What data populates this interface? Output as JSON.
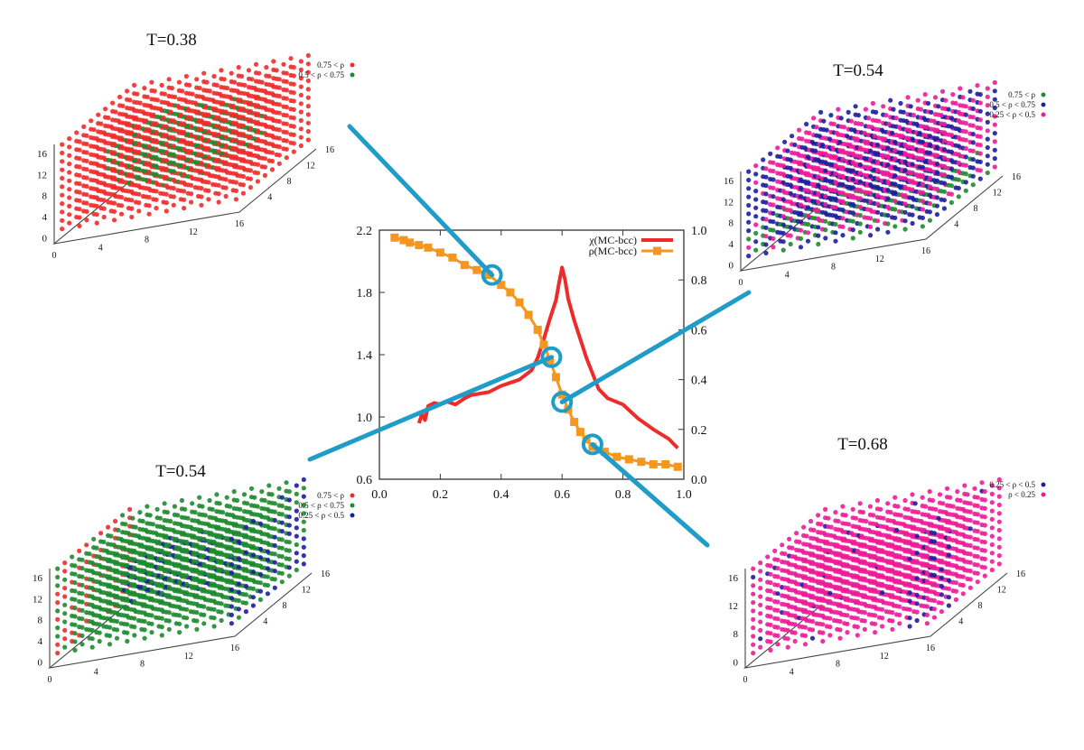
{
  "colors": {
    "red": "#ee2b2b",
    "green": "#1e8a2e",
    "blue": "#1c1f9c",
    "pink": "#ee1b98",
    "orange": "#f5961e",
    "connector": "#1f9cc8",
    "axis": "#333333"
  },
  "chart_data": {
    "type": "line",
    "title": "",
    "xlabel": "",
    "ylabel": "",
    "xlim": [
      0.0,
      1.0
    ],
    "ylim_left": [
      0.6,
      2.2
    ],
    "ylim_right": [
      0.0,
      1.0
    ],
    "xticks": [
      "0.0",
      "0.2",
      "0.4",
      "0.6",
      "0.8",
      "1.0"
    ],
    "yticks_left": [
      "0.6",
      "1.0",
      "1.4",
      "1.8",
      "2.2"
    ],
    "yticks_right": [
      "0.0",
      "0.2",
      "0.4",
      "0.6",
      "0.8",
      "1.0"
    ],
    "legend_position": "top-right",
    "series": [
      {
        "name": "χ(MC-bcc)",
        "axis": "left",
        "color": "red",
        "x": [
          0.13,
          0.14,
          0.15,
          0.16,
          0.18,
          0.2,
          0.22,
          0.25,
          0.28,
          0.3,
          0.33,
          0.36,
          0.4,
          0.43,
          0.46,
          0.48,
          0.5,
          0.52,
          0.54,
          0.56,
          0.58,
          0.59,
          0.6,
          0.61,
          0.62,
          0.64,
          0.66,
          0.68,
          0.7,
          0.72,
          0.75,
          0.8,
          0.85,
          0.9,
          0.95,
          0.98
        ],
        "y": [
          0.96,
          1.02,
          0.98,
          1.07,
          1.09,
          1.08,
          1.1,
          1.08,
          1.12,
          1.14,
          1.15,
          1.16,
          1.2,
          1.22,
          1.24,
          1.27,
          1.3,
          1.38,
          1.5,
          1.63,
          1.75,
          1.86,
          1.96,
          1.88,
          1.76,
          1.62,
          1.5,
          1.38,
          1.28,
          1.18,
          1.12,
          1.08,
          0.99,
          0.92,
          0.86,
          0.8
        ]
      },
      {
        "name": "ρ(MC-bcc)",
        "axis": "right",
        "color": "orange",
        "x": [
          0.05,
          0.08,
          0.1,
          0.13,
          0.16,
          0.2,
          0.24,
          0.28,
          0.32,
          0.36,
          0.4,
          0.43,
          0.46,
          0.49,
          0.52,
          0.54,
          0.56,
          0.58,
          0.6,
          0.62,
          0.64,
          0.66,
          0.68,
          0.7,
          0.74,
          0.78,
          0.82,
          0.86,
          0.9,
          0.94,
          0.98
        ],
        "y": [
          0.97,
          0.96,
          0.95,
          0.94,
          0.93,
          0.91,
          0.89,
          0.86,
          0.84,
          0.82,
          0.78,
          0.75,
          0.71,
          0.66,
          0.6,
          0.54,
          0.48,
          0.41,
          0.34,
          0.28,
          0.23,
          0.19,
          0.16,
          0.13,
          0.11,
          0.09,
          0.08,
          0.07,
          0.06,
          0.06,
          0.05
        ]
      }
    ]
  },
  "highlights": [
    {
      "x": 0.37,
      "y_right": 0.82
    },
    {
      "x": 0.565,
      "y_right": 0.49
    },
    {
      "x": 0.6,
      "y_right": 0.31
    },
    {
      "x": 0.7,
      "y_right": 0.14
    }
  ],
  "insets": [
    {
      "id": "top-left",
      "title": "T=0.38",
      "z_ticks": [
        "0",
        "4",
        "8",
        "12",
        "16"
      ],
      "x_ticks": [
        "0",
        "4",
        "8",
        "12",
        "16"
      ],
      "y_ticks": [
        "4",
        "8",
        "12",
        "16"
      ],
      "legend": [
        {
          "label": "0.75 < ρ",
          "color": "red"
        },
        {
          "label": "0.5 < ρ < 0.75",
          "color": "green"
        }
      ],
      "base_color": "red",
      "blob_color": "green",
      "blob_color2": ""
    },
    {
      "id": "top-right",
      "title": "T=0.54",
      "z_ticks": [
        "0",
        "4",
        "8",
        "12",
        "16"
      ],
      "x_ticks": [
        "0",
        "4",
        "8",
        "12",
        "16"
      ],
      "y_ticks": [
        "4",
        "8",
        "12",
        "16"
      ],
      "legend": [
        {
          "label": "0.75 < ρ",
          "color": "green"
        },
        {
          "label": "0.5 < ρ < 0.75",
          "color": "blue"
        },
        {
          "label": "0.25 < ρ < 0.5",
          "color": "pink"
        }
      ],
      "base_color": "blue",
      "blob_color": "pink",
      "blob_color2": "green"
    },
    {
      "id": "bottom-left",
      "title": "T=0.54",
      "z_ticks": [
        "0",
        "4",
        "8",
        "12",
        "16"
      ],
      "x_ticks": [
        "0",
        "4",
        "8",
        "12",
        "16"
      ],
      "y_ticks": [
        "4",
        "8",
        "12",
        "16"
      ],
      "legend": [
        {
          "label": "0.75 < ρ",
          "color": "red"
        },
        {
          "label": "0.5 < ρ < 0.75",
          "color": "green"
        },
        {
          "label": "0.25 < ρ < 0.5",
          "color": "blue"
        }
      ],
      "base_color": "green",
      "blob_color": "blue",
      "blob_color2": "red"
    },
    {
      "id": "bottom-right",
      "title": "T=0.68",
      "z_ticks": [
        "0",
        "8",
        "12",
        "16"
      ],
      "x_ticks": [
        "0",
        "4",
        "8",
        "12",
        "16"
      ],
      "y_ticks": [
        "4",
        "8",
        "12",
        "16"
      ],
      "legend": [
        {
          "label": "0.25 < ρ < 0.5",
          "color": "blue"
        },
        {
          "label": "ρ < 0.25",
          "color": "pink"
        }
      ],
      "base_color": "pink",
      "blob_color": "blue",
      "blob_color2": ""
    }
  ]
}
